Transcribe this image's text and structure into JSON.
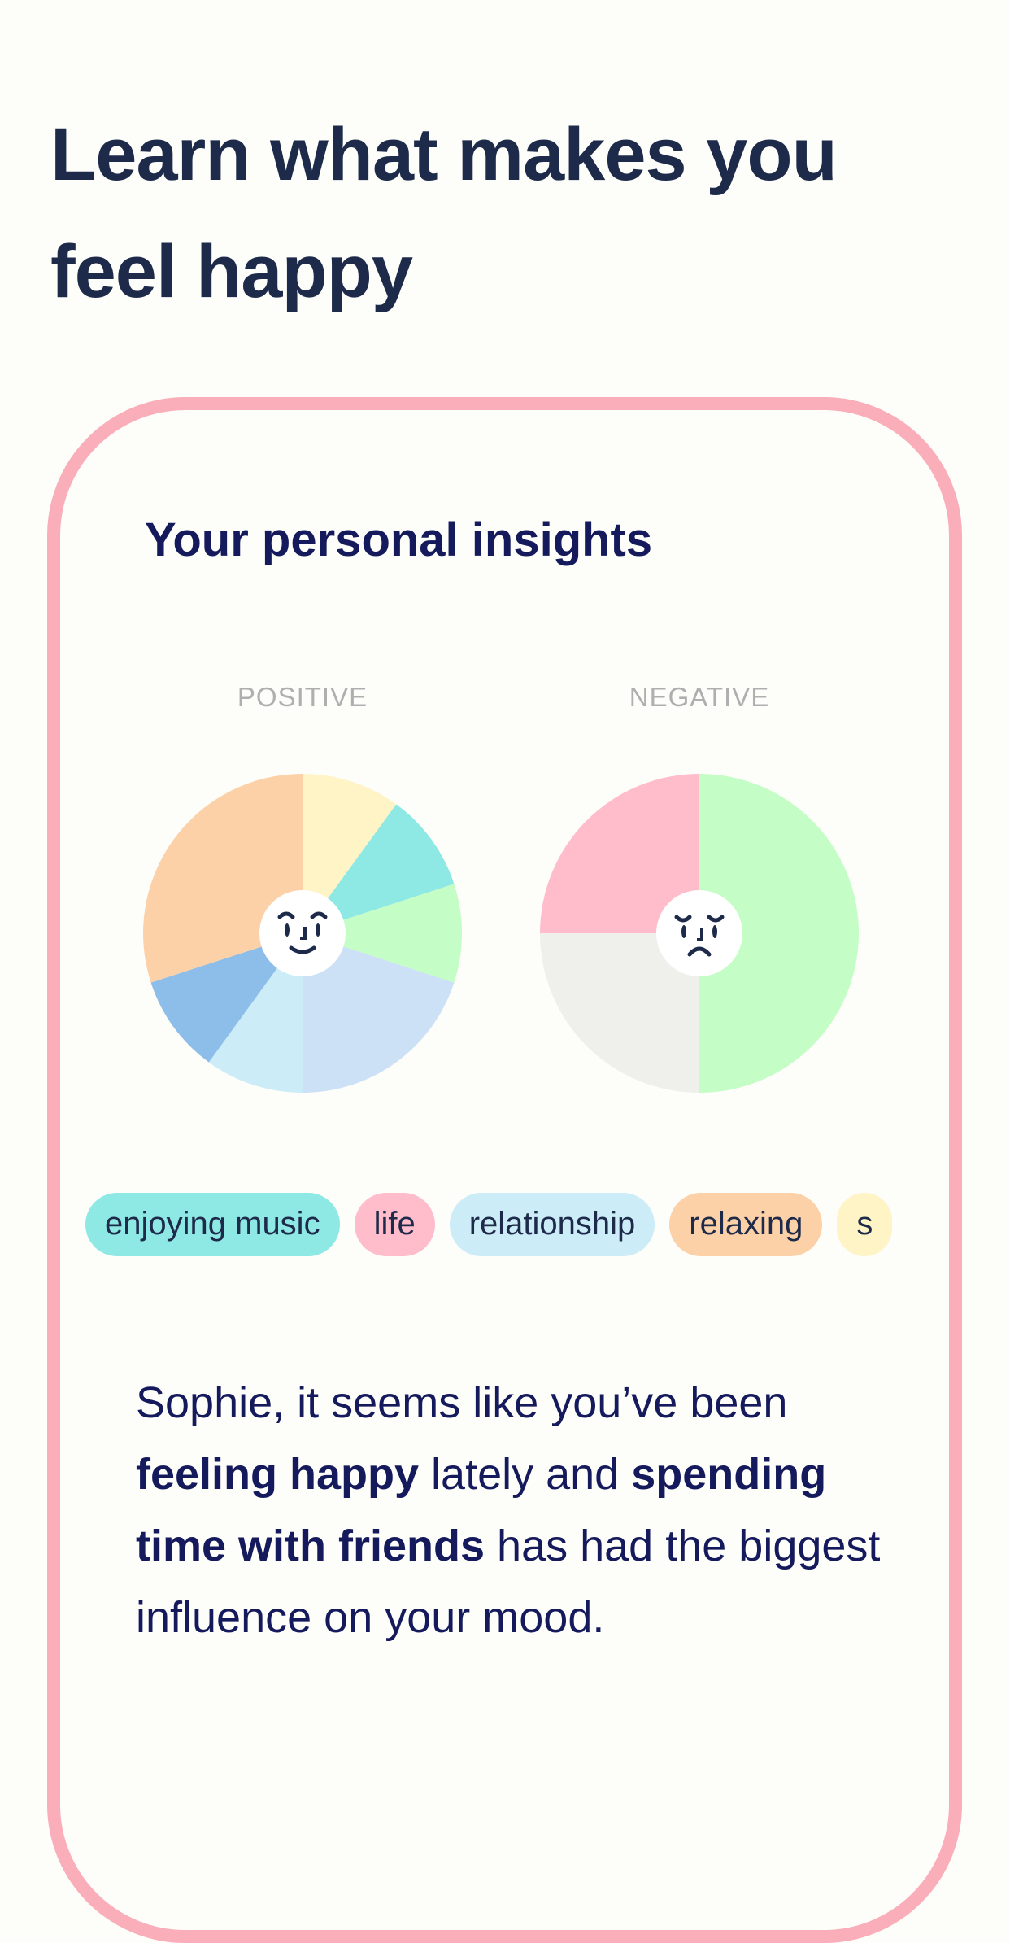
{
  "headline": {
    "line1": "Learn what makes you",
    "line2": "feel happy"
  },
  "card": {
    "title": "Your personal insights",
    "positive_label": "POSITIVE",
    "negative_label": "NEGATIVE",
    "positive_face_icon": "smiling-face-icon",
    "negative_face_icon": "sad-face-icon",
    "tags": [
      {
        "label": "enjoying music",
        "color": "#8EE8E3"
      },
      {
        "label": "life",
        "color": "#FFBDCB"
      },
      {
        "label": "relationship",
        "color": "#CCEDF8"
      },
      {
        "label": "relaxing",
        "color": "#FDD1A7"
      },
      {
        "label": "s",
        "color": "#FFF4C6"
      }
    ],
    "summary": {
      "p1": "Sophie, it seems like you’ve been ",
      "b1": "feeling happy",
      "p2": " lately and ",
      "b2": "spending time with friends",
      "p3": " has had the biggest influence on your mood."
    }
  },
  "chart_data": [
    {
      "type": "pie",
      "title": "POSITIVE",
      "start": "12 o'clock, clockwise",
      "values": [
        10,
        10,
        10,
        20,
        10,
        10,
        30
      ],
      "colors": [
        "#FFF4C6",
        "#8EE8E3",
        "#C4FDC5",
        "#CDE1F6",
        "#CCEDF8",
        "#8DBEEA",
        "#FDD1A7"
      ]
    },
    {
      "type": "pie",
      "title": "NEGATIVE",
      "start": "12 o'clock, clockwise",
      "values": [
        50,
        25,
        25
      ],
      "colors": [
        "#C4FDC5",
        "#EFEFEC",
        "#FFBDCB"
      ]
    }
  ]
}
